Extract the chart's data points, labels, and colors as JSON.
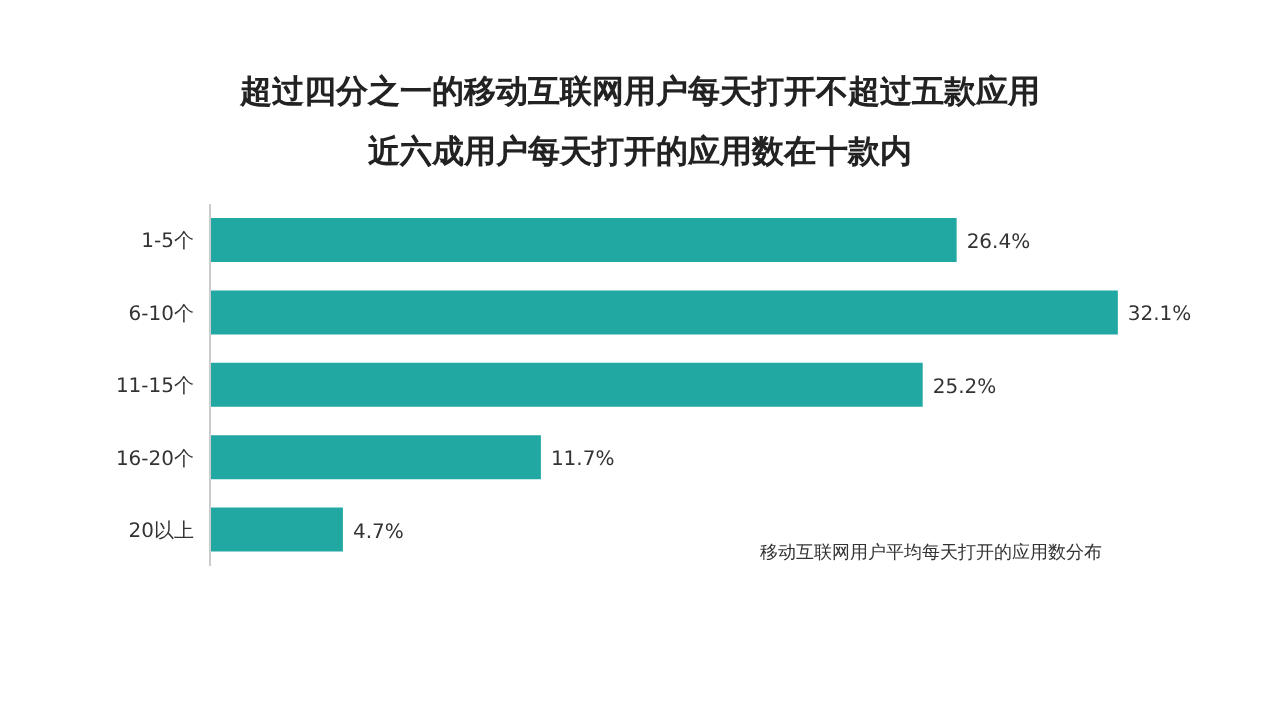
{
  "chart_data": {
    "type": "bar",
    "orientation": "horizontal",
    "title": "超过四分之一的移动互联网用户每天打开不超过五款应用",
    "subtitle": "近六成用户每天打开的应用数在十款内",
    "categories": [
      "1-5个",
      "6-10个",
      "11-15个",
      "16-20个",
      "20以上"
    ],
    "values": [
      26.4,
      32.1,
      25.2,
      11.7,
      4.7
    ],
    "value_labels": [
      "26.4%",
      "32.1%",
      "25.2%",
      "11.7%",
      "4.7%"
    ],
    "color": "#22a8a3",
    "annotations": [
      "移动互联网用户平均每天打开的应用数分布"
    ],
    "grid": false,
    "legend": false
  }
}
